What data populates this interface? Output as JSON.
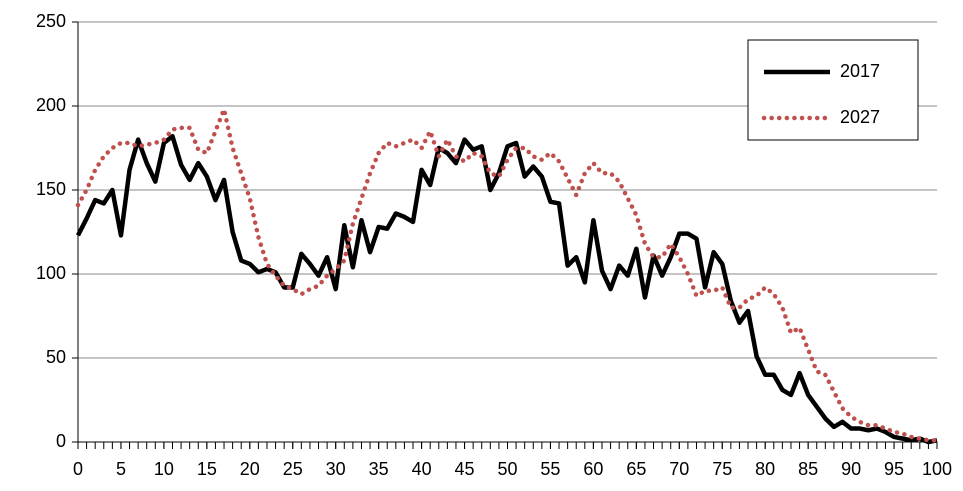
{
  "chart_data": {
    "type": "line",
    "x": [
      0,
      1,
      2,
      3,
      4,
      5,
      6,
      7,
      8,
      9,
      10,
      11,
      12,
      13,
      14,
      15,
      16,
      17,
      18,
      19,
      20,
      21,
      22,
      23,
      24,
      25,
      26,
      27,
      28,
      29,
      30,
      31,
      32,
      33,
      34,
      35,
      36,
      37,
      38,
      39,
      40,
      41,
      42,
      43,
      44,
      45,
      46,
      47,
      48,
      49,
      50,
      51,
      52,
      53,
      54,
      55,
      56,
      57,
      58,
      59,
      60,
      61,
      62,
      63,
      64,
      65,
      66,
      67,
      68,
      69,
      70,
      71,
      72,
      73,
      74,
      75,
      76,
      77,
      78,
      79,
      80,
      81,
      82,
      83,
      84,
      85,
      86,
      87,
      88,
      89,
      90,
      91,
      92,
      93,
      94,
      95,
      96,
      97,
      98,
      99,
      100
    ],
    "series": [
      {
        "name": "2017",
        "color": "#000000",
        "style": "solid",
        "values": [
          123,
          133,
          144,
          142,
          150,
          123,
          162,
          180,
          166,
          155,
          178,
          182,
          165,
          156,
          166,
          158,
          144,
          156,
          125,
          108,
          106,
          101,
          103,
          101,
          92,
          92,
          112,
          106,
          99,
          110,
          91,
          129,
          104,
          132,
          113,
          128,
          127,
          136,
          134,
          131,
          162,
          153,
          175,
          172,
          166,
          180,
          174,
          176,
          150,
          160,
          176,
          178,
          158,
          164,
          158,
          143,
          142,
          105,
          110,
          95,
          132,
          102,
          91,
          105,
          99,
          115,
          86,
          111,
          99,
          110,
          124,
          124,
          121,
          92,
          113,
          106,
          84,
          71,
          78,
          51,
          40,
          40,
          31,
          28,
          41,
          28,
          21,
          14,
          9,
          12,
          8,
          8,
          7,
          8,
          6,
          3,
          2,
          1,
          2,
          0,
          1
        ]
      },
      {
        "name": "2027",
        "color": "#c0504d",
        "style": "dotted",
        "values": [
          141,
          150,
          162,
          170,
          175,
          178,
          178,
          176,
          177,
          178,
          180,
          186,
          187,
          187,
          174,
          172,
          185,
          198,
          175,
          160,
          145,
          122,
          106,
          99,
          93,
          91,
          88,
          91,
          93,
          99,
          103,
          108,
          130,
          145,
          160,
          172,
          178,
          176,
          178,
          180,
          175,
          185,
          170,
          180,
          170,
          167,
          172,
          170,
          160,
          158,
          168,
          175,
          175,
          170,
          168,
          172,
          167,
          157,
          147,
          160,
          166,
          160,
          160,
          155,
          145,
          135,
          118,
          110,
          110,
          118,
          110,
          100,
          87,
          90,
          90,
          92,
          80,
          80,
          85,
          87,
          92,
          88,
          80,
          65,
          68,
          55,
          42,
          40,
          30,
          20,
          15,
          12,
          10,
          10,
          8,
          6,
          5,
          3,
          2,
          1,
          1
        ]
      }
    ],
    "xlim": [
      0,
      100
    ],
    "xticks": [
      0,
      5,
      10,
      15,
      20,
      25,
      30,
      35,
      40,
      45,
      50,
      55,
      60,
      65,
      70,
      75,
      80,
      85,
      90,
      95,
      100
    ],
    "ylim": [
      0,
      250
    ],
    "yticks": [
      0,
      50,
      100,
      150,
      200,
      250
    ],
    "grid": true,
    "legend": "upper right"
  }
}
